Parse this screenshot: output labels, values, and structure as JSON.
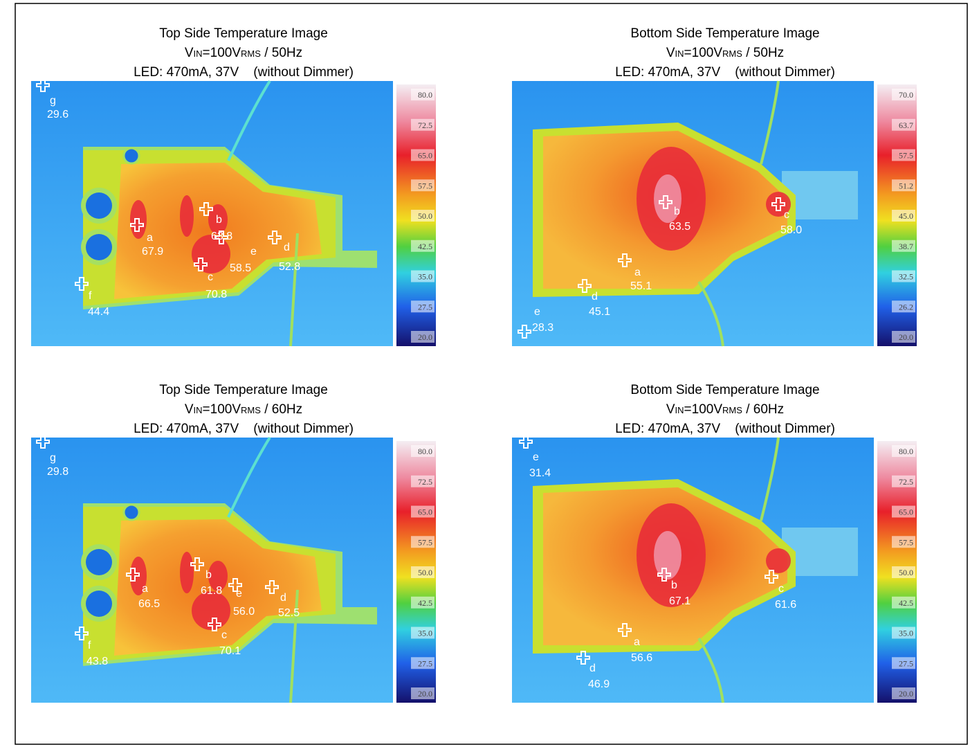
{
  "panels": [
    {
      "title": "Top Side Temperature Image",
      "vin": [
        "V",
        "IN",
        "=100V",
        "RMS",
        " / 50Hz"
      ],
      "led": "LED: 470mA, 37V    (without Dimmer)",
      "scale": [
        "80.0",
        "72.5",
        "65.0",
        "57.5",
        "50.0",
        "42.5",
        "35.0",
        "27.5",
        "20.0"
      ],
      "markers": [
        {
          "label": "g",
          "value": "29.6"
        },
        {
          "label": "a",
          "value": "67.9"
        },
        {
          "label": "b",
          "value": "63.8"
        },
        {
          "label": "e",
          "value": "58.5"
        },
        {
          "label": "c",
          "value": "70.8"
        },
        {
          "label": "d",
          "value": "52.8"
        },
        {
          "label": "f",
          "value": "44.4"
        }
      ]
    },
    {
      "title": "Bottom Side Temperature Image",
      "vin": [
        "V",
        "IN",
        "=100V",
        "RMS",
        " / 50Hz"
      ],
      "led": "LED: 470mA, 37V    (without Dimmer)",
      "scale": [
        "70.0",
        "63.7",
        "57.5",
        "51.2",
        "45.0",
        "38.7",
        "32.5",
        "26.2",
        "20.0"
      ],
      "markers": [
        {
          "label": "b",
          "value": "63.5"
        },
        {
          "label": "c",
          "value": "58.0"
        },
        {
          "label": "a",
          "value": "55.1"
        },
        {
          "label": "d",
          "value": "45.1"
        },
        {
          "label": "e",
          "value": "28.3"
        }
      ]
    },
    {
      "title": "Top Side Temperature Image",
      "vin": [
        "V",
        "IN",
        "=100V",
        "RMS",
        " / 60Hz"
      ],
      "led": "LED: 470mA, 37V    (without Dimmer)",
      "scale": [
        "80.0",
        "72.5",
        "65.0",
        "57.5",
        "50.0",
        "42.5",
        "35.0",
        "27.5",
        "20.0"
      ],
      "markers": [
        {
          "label": "g",
          "value": "29.8"
        },
        {
          "label": "a",
          "value": "66.5"
        },
        {
          "label": "b",
          "value": "61.8"
        },
        {
          "label": "e",
          "value": "56.0"
        },
        {
          "label": "c",
          "value": "70.1"
        },
        {
          "label": "d",
          "value": "52.5"
        },
        {
          "label": "f",
          "value": "43.8"
        }
      ]
    },
    {
      "title": "Bottom Side Temperature Image",
      "vin": [
        "V",
        "IN",
        "=100V",
        "RMS",
        " / 60Hz"
      ],
      "led": "LED: 470mA, 37V    (without Dimmer)",
      "scale": [
        "80.0",
        "72.5",
        "65.0",
        "57.5",
        "50.0",
        "42.5",
        "35.0",
        "27.5",
        "20.0"
      ],
      "markers": [
        {
          "label": "e",
          "value": "31.4"
        },
        {
          "label": "b",
          "value": "67.1"
        },
        {
          "label": "c",
          "value": "61.6"
        },
        {
          "label": "a",
          "value": "56.6"
        },
        {
          "label": "d",
          "value": "46.9"
        }
      ]
    }
  ]
}
